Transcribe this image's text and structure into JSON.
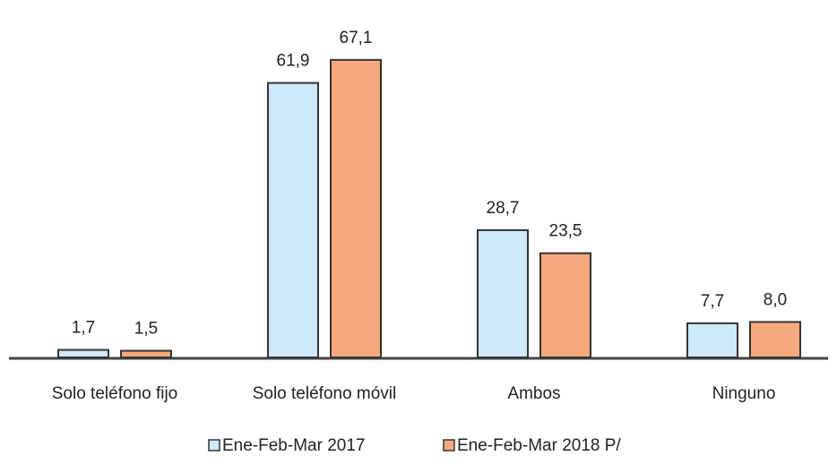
{
  "chart_data": {
    "type": "bar",
    "categories": [
      "Solo teléfono fijo",
      "Solo teléfono móvil",
      "Ambos",
      "Ninguno"
    ],
    "series": [
      {
        "name": "Ene-Feb-Mar 2017",
        "color": "#cde9fb",
        "values": [
          1.7,
          61.9,
          28.7,
          7.7
        ],
        "value_labels": [
          "1,7",
          "61,9",
          "28,7",
          "7,7"
        ]
      },
      {
        "name": "Ene-Feb-Mar 2018 P/",
        "color": "#f5a97c",
        "values": [
          1.5,
          67.1,
          23.5,
          8.0
        ],
        "value_labels": [
          "1,5",
          "67,1",
          "23,5",
          "8,0"
        ]
      }
    ],
    "legend": "bottom"
  }
}
